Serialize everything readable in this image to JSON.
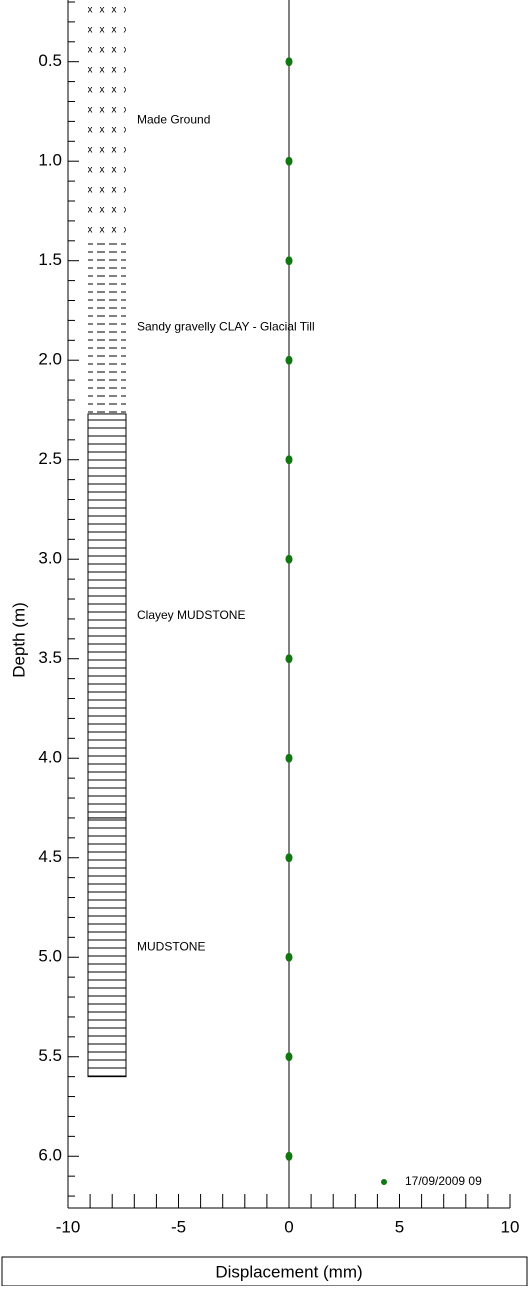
{
  "chart_data": {
    "type": "scatter",
    "xlabel": "Displacement (mm)",
    "ylabel": "Depth (m)",
    "xlim": [
      -10,
      10
    ],
    "xticks": [
      -10,
      -5,
      0,
      5,
      10
    ],
    "xminorticks": [
      -9,
      -8,
      -7,
      -6,
      -4,
      -3,
      -2,
      -1,
      1,
      2,
      3,
      4,
      6,
      7,
      8,
      9
    ],
    "ylim": [
      0.19,
      6.26
    ],
    "y_inverted": true,
    "yticks": [
      {
        "value": 0.5,
        "label": "0.5"
      },
      {
        "value": 1,
        "label": "1.0"
      },
      {
        "value": 1.5,
        "label": "1.5"
      },
      {
        "value": 2,
        "label": "2.0"
      },
      {
        "value": 2.5,
        "label": "2.5"
      },
      {
        "value": 3,
        "label": "3.0"
      },
      {
        "value": 3.5,
        "label": "3.5"
      },
      {
        "value": 4,
        "label": "4.0"
      },
      {
        "value": 4.5,
        "label": "4.5"
      },
      {
        "value": 5,
        "label": "5.0"
      },
      {
        "value": 5.5,
        "label": "5.5"
      },
      {
        "value": 6,
        "label": "6.0"
      }
    ],
    "yminorticks": [
      0.2,
      0.3,
      0.4,
      0.6,
      0.7,
      0.8,
      0.9,
      1.1,
      1.2,
      1.3,
      1.4,
      1.6,
      1.7,
      1.8,
      1.9,
      2.1,
      2.2,
      2.3,
      2.4,
      2.6,
      2.7,
      2.8,
      2.9,
      3.1,
      3.2,
      3.3,
      3.4,
      3.6,
      3.7,
      3.8,
      3.9,
      4.1,
      4.2,
      4.3,
      4.4,
      4.6,
      4.7,
      4.8,
      4.9,
      5.1,
      5.2,
      5.3,
      5.4,
      5.6,
      5.7,
      5.8,
      5.9,
      6.1,
      6.2
    ],
    "strata": [
      {
        "name": "Made Ground",
        "top": 0.19,
        "bottom": 1.4,
        "pattern": "cross"
      },
      {
        "name": "Sandy gravelly CLAY - Glacial Till",
        "top": 1.4,
        "bottom": 2.27,
        "pattern": "dash"
      },
      {
        "name": "Clayey MUDSTONE",
        "top": 2.27,
        "bottom": 4.3,
        "pattern": "line"
      },
      {
        "name": "MUDSTONE",
        "top": 4.3,
        "bottom": 5.6,
        "pattern": "line"
      }
    ],
    "series": [
      {
        "name": "17/09/2009 09",
        "color": "#117711",
        "x": [
          0,
          0,
          0,
          0,
          0,
          0,
          0,
          0,
          0,
          0,
          0,
          0
        ],
        "y": [
          0.5,
          1,
          1.5,
          2,
          2.5,
          3,
          3.5,
          4,
          4.5,
          5,
          5.5,
          6
        ]
      }
    ]
  }
}
